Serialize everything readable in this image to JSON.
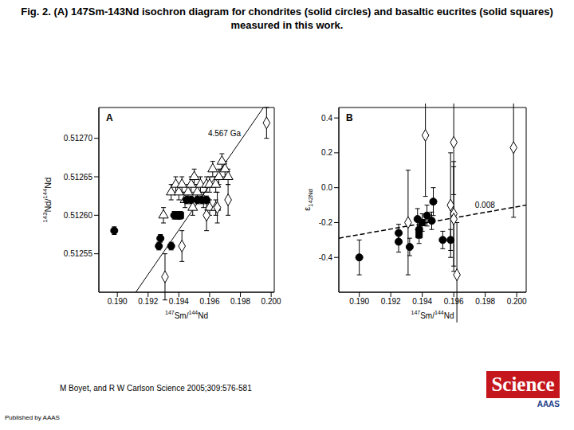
{
  "title": "Fig. 2. (A) 147Sm-143Nd isochron diagram for chondrites (solid circles) and basaltic eucrites (solid squares) measured in this work.",
  "citation": "M Boyet, and R W Carlson Science 2005;309:576-581",
  "publisher": "Published by AAAS",
  "logo": {
    "text": "Science",
    "subtext": "AAAS",
    "color": "#c4161c"
  },
  "chart_data": [
    {
      "type": "scatter",
      "panel": "A",
      "x_label": "147Sm/144Nd",
      "y_label": "143Nd/144Nd",
      "xlim": [
        0.1888,
        0.2002
      ],
      "ylim": [
        0.5125,
        0.51274
      ],
      "xticks": [
        {
          "value": 0.19,
          "label": "0.190"
        },
        {
          "value": 0.192,
          "label": "0.192"
        },
        {
          "value": 0.194,
          "label": "0.194"
        },
        {
          "value": 0.196,
          "label": "0.196"
        },
        {
          "value": 0.198,
          "label": "0.198"
        },
        {
          "value": 0.2,
          "label": "0.200"
        }
      ],
      "yticks": [
        0.51255,
        {
          "value": 0.5126,
          "label": "0.51260"
        },
        0.51265,
        {
          "value": 0.5127,
          "label": "0.51270"
        }
      ],
      "lines": [
        {
          "label": "4.567 Ga",
          "x": [
            0.1912,
            0.1995
          ],
          "y": [
            0.5125,
            0.51274
          ],
          "line_style": "solid",
          "color": "#000000"
        }
      ],
      "series": [
        {
          "marker": "triangle-open",
          "color": "#000000",
          "x": [
            0.193,
            0.1935,
            0.1938,
            0.194,
            0.1942,
            0.1944,
            0.1946,
            0.1948,
            0.195,
            0.1952,
            0.1954,
            0.1956,
            0.1958,
            0.196,
            0.1962,
            0.1964,
            0.1966,
            0.1968,
            0.197,
            0.1972,
            0.196,
            0.1964,
            0.1949
          ],
          "y": [
            0.5126,
            0.51263,
            0.51264,
            0.51263,
            0.51264,
            0.51262,
            0.51263,
            0.51264,
            0.51265,
            0.51263,
            0.51264,
            0.51262,
            0.51264,
            0.51264,
            0.51266,
            0.51264,
            0.51265,
            0.51267,
            0.51266,
            0.51265,
            0.51261,
            0.51261,
            0.51261
          ],
          "y_err": [
            1e-05,
            1e-05,
            1e-05,
            1e-05,
            1e-05,
            1e-05,
            1e-05,
            1e-05,
            1e-05,
            1e-05,
            1e-05,
            1e-05,
            1e-05,
            1e-05,
            1e-05,
            1e-05,
            1e-05,
            1e-05,
            1e-05,
            1e-05,
            1e-05,
            1e-05,
            1e-05
          ]
        },
        {
          "marker": "diamond-open",
          "color": "#000000",
          "x": [
            0.1931,
            0.1942,
            0.1958,
            0.1965,
            0.1972,
            0.1997
          ],
          "y": [
            0.51252,
            0.51256,
            0.5126,
            0.51261,
            0.51262,
            0.51272
          ],
          "y_err": [
            3e-05,
            2e-05,
            2e-05,
            2e-05,
            2e-05,
            2e-05
          ]
        },
        {
          "marker": "circle",
          "color": "#000000",
          "x": [
            0.1898,
            0.1928,
            0.1927,
            0.1935,
            0.1937,
            0.194,
            0.1945,
            0.1948,
            0.1952,
            0.1955,
            0.1958
          ],
          "y": [
            0.51258,
            0.51257,
            0.51256,
            0.51256,
            0.5126,
            0.5126,
            0.51262,
            0.51262,
            0.51262,
            0.51262,
            0.51262
          ],
          "y_err": [
            5e-06,
            5e-06,
            5e-06,
            5e-06,
            5e-06,
            5e-06,
            5e-06,
            5e-06,
            5e-06,
            5e-06,
            5e-06
          ]
        },
        {
          "marker": "square",
          "color": "#000000",
          "x": [
            0.1939,
            0.1941
          ],
          "y": [
            0.5126,
            0.5126
          ],
          "y_err": [
            5e-06,
            5e-06
          ]
        }
      ]
    },
    {
      "type": "scatter",
      "panel": "B",
      "x_label": "147Sm/144Nd",
      "y_label": "ε142Nd",
      "xlim": [
        0.1887,
        0.2006
      ],
      "ylim": [
        -0.6,
        0.46
      ],
      "xticks": [
        {
          "value": 0.19,
          "label": "0.190"
        },
        {
          "value": 0.192,
          "label": "0.192"
        },
        {
          "value": 0.194,
          "label": "0.194"
        },
        {
          "value": 0.196,
          "label": "0.196"
        },
        {
          "value": 0.198,
          "label": "0.198"
        },
        {
          "value": 0.2,
          "label": "0.200"
        }
      ],
      "yticks": [
        -0.4,
        -0.2,
        {
          "value": 0,
          "label": "0.0"
        },
        0.2,
        0.4
      ],
      "lines": [
        {
          "label": "0.008",
          "x": [
            0.1887,
            0.2006
          ],
          "y": [
            -0.29,
            -0.1
          ],
          "line_style": "dashed",
          "color": "#000000"
        }
      ],
      "series": [
        {
          "marker": "diamond-open",
          "color": "#000000",
          "x": [
            0.1931,
            0.1942,
            0.1958,
            0.196,
            0.196,
            0.196,
            0.1962,
            0.1998
          ],
          "y": [
            -0.2,
            0.3,
            -0.1,
            0.26,
            -0.15,
            -0.18,
            -0.5,
            0.23
          ],
          "y_err": [
            0.3,
            0.35,
            0.3,
            0.3,
            0.3,
            0.3,
            0.3,
            0.4
          ]
        },
        {
          "marker": "circle",
          "color": "#000000",
          "x": [
            0.19,
            0.1925,
            0.1925,
            0.1932,
            0.1937,
            0.1938,
            0.1943,
            0.1946,
            0.1947,
            0.1953,
            0.1958
          ],
          "y": [
            -0.4,
            -0.26,
            -0.31,
            -0.34,
            -0.18,
            -0.24,
            -0.16,
            -0.19,
            -0.08,
            -0.3,
            -0.3
          ],
          "y_err": [
            0.1,
            0.05,
            0.06,
            0.05,
            0.06,
            0.05,
            0.06,
            0.05,
            0.08,
            0.05,
            0.06
          ]
        },
        {
          "marker": "square",
          "color": "#000000",
          "x": [
            0.1938,
            0.194
          ],
          "y": [
            -0.27,
            -0.2
          ],
          "y_err": [
            0.05,
            0.05
          ]
        }
      ]
    }
  ]
}
